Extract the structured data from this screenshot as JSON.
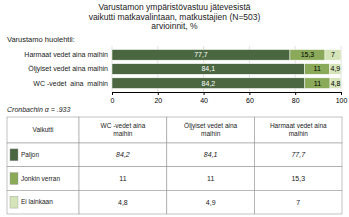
{
  "chart_data": {
    "type": "bar",
    "orientation": "horizontal",
    "stacked": true,
    "data_labels": true,
    "grid": true,
    "title": "Varustamon ympäristövastuu jätevesistä\nvaikutti matkavalintaan, matkustajien (N=503)\narvioinnit, %",
    "subtitle": "Varustamo huolehtii:",
    "annotations": [
      "Cronbachin α = .933"
    ],
    "categories": [
      "Harmaat vedet aina maihin",
      "Öljyiset vedet aina maihin",
      "WC -vedet  aina  maihin"
    ],
    "series": [
      {
        "name": "Paljon",
        "color": "#4a6741",
        "values": [
          77.7,
          84.1,
          84.2
        ],
        "value_labels": [
          "77,7",
          "84,1",
          "84,2"
        ]
      },
      {
        "name": "Jonkin verran",
        "color": "#8aaa5a",
        "values": [
          15.3,
          11.0,
          11.0
        ],
        "value_labels": [
          "15,3",
          "11",
          "11"
        ]
      },
      {
        "name": "Ei lainkaan",
        "color": "#d4e4b8",
        "values": [
          7.0,
          4.9,
          4.8
        ],
        "value_labels": [
          "7",
          "4,9",
          "4,8"
        ]
      }
    ],
    "xlim": [
      0,
      100
    ],
    "xticks": [
      0,
      20,
      40,
      60,
      80,
      100
    ],
    "table": {
      "header": [
        "Vaikutti",
        "WC -vedet aina\nmaihin",
        "Öljyiset vedet aina\nmaihin",
        "Harmaat vedet aina\nmaihin"
      ],
      "cells": [
        [
          "84,2",
          "84,1",
          "77,7"
        ],
        [
          "11",
          "11",
          "15,3"
        ],
        [
          "4,8",
          "4,9",
          "7"
        ]
      ]
    }
  }
}
